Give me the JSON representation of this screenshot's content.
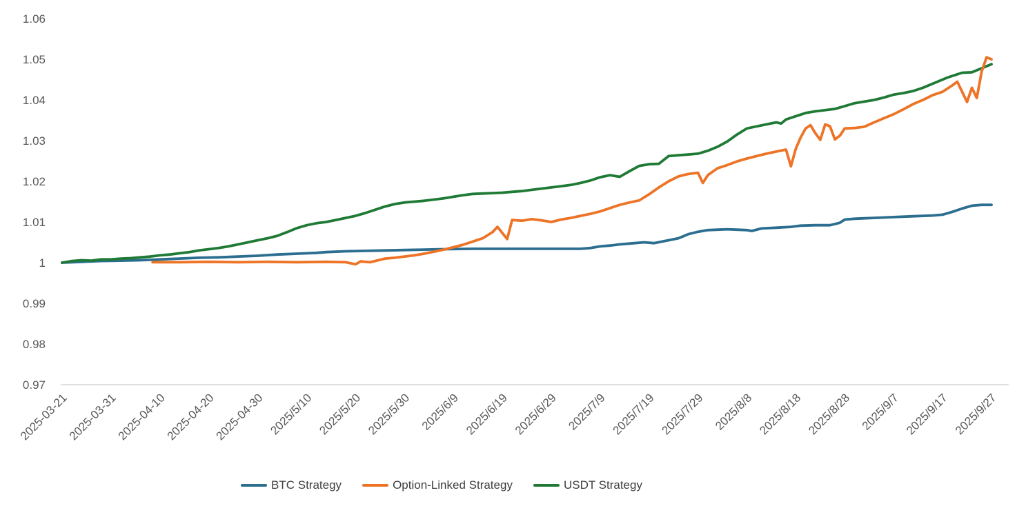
{
  "chart_data": {
    "type": "line",
    "title": "",
    "background_color": "#ffffff",
    "axis_line_color": "#d6d6d6",
    "axis_label_color": "#595959",
    "legend_text_color": "#404040",
    "x_axis": {
      "label": "",
      "unit": "days since 2025-03-21",
      "tick_labels": [
        "2025-03-21",
        "2025-03-31",
        "2025-04-10",
        "2025-04-20",
        "2025-04-30",
        "2025/5/10",
        "2025/5/20",
        "2025/5/30",
        "2025/6/9",
        "2025/6/19",
        "2025/6/29",
        "2025/7/9",
        "2025/7/19",
        "2025/7/29",
        "2025/8/8",
        "2025/8/18",
        "2025/8/28",
        "2025/9/7",
        "2025/9/17",
        "2025/9/27"
      ],
      "tick_day_offsets": [
        0,
        10,
        20,
        30,
        40,
        50,
        60,
        70,
        80,
        90,
        100,
        110,
        120,
        130,
        140,
        150,
        160,
        170,
        180,
        190
      ],
      "range_days": [
        0,
        190
      ],
      "tick_rotation_deg": -45
    },
    "y_axis": {
      "label": "",
      "tick_labels": [
        "1.06",
        "1.05",
        "1.04",
        "1.03",
        "1.02",
        "1.01",
        "1",
        "0.99",
        "0.98",
        "0.97"
      ],
      "min": 0.97,
      "max": 1.06,
      "grid": false
    },
    "legend": {
      "position": "bottom",
      "items": [
        "BTC Strategy",
        "Option-Linked Strategy",
        "USDT Strategy"
      ]
    },
    "series": [
      {
        "name": "BTC Strategy",
        "color": "#2b6e8f",
        "points": [
          [
            0,
            1.0
          ],
          [
            4,
            1.0002
          ],
          [
            8,
            1.0004
          ],
          [
            12,
            1.0005
          ],
          [
            16,
            1.0006
          ],
          [
            20,
            1.0008
          ],
          [
            24,
            1.001
          ],
          [
            28,
            1.0012
          ],
          [
            32,
            1.0013
          ],
          [
            36,
            1.0015
          ],
          [
            40,
            1.0017
          ],
          [
            44,
            1.002
          ],
          [
            48,
            1.0022
          ],
          [
            52,
            1.0024
          ],
          [
            54,
            1.0026
          ],
          [
            58,
            1.0028
          ],
          [
            62,
            1.0029
          ],
          [
            66,
            1.003
          ],
          [
            70,
            1.0031
          ],
          [
            74,
            1.0032
          ],
          [
            78,
            1.0033
          ],
          [
            84,
            1.0034
          ],
          [
            90,
            1.0034
          ],
          [
            96,
            1.0034
          ],
          [
            102,
            1.0034
          ],
          [
            106,
            1.0034
          ],
          [
            108,
            1.0036
          ],
          [
            110,
            1.004
          ],
          [
            112,
            1.0042
          ],
          [
            114,
            1.0045
          ],
          [
            117,
            1.0048
          ],
          [
            119,
            1.005
          ],
          [
            121,
            1.0048
          ],
          [
            124,
            1.0055
          ],
          [
            126,
            1.006
          ],
          [
            128,
            1.007
          ],
          [
            130,
            1.0076
          ],
          [
            132,
            1.008
          ],
          [
            134,
            1.0081
          ],
          [
            136,
            1.0082
          ],
          [
            138,
            1.0081
          ],
          [
            140,
            1.008
          ],
          [
            141,
            1.0078
          ],
          [
            143,
            1.0084
          ],
          [
            146,
            1.0086
          ],
          [
            149,
            1.0088
          ],
          [
            151,
            1.0091
          ],
          [
            154,
            1.0092
          ],
          [
            157,
            1.0092
          ],
          [
            159,
            1.0098
          ],
          [
            160,
            1.0106
          ],
          [
            162,
            1.0108
          ],
          [
            164,
            1.0109
          ],
          [
            166,
            1.011
          ],
          [
            170,
            1.0112
          ],
          [
            174,
            1.0114
          ],
          [
            178,
            1.0116
          ],
          [
            180,
            1.0118
          ],
          [
            182,
            1.0125
          ],
          [
            184,
            1.0133
          ],
          [
            186,
            1.014
          ],
          [
            188,
            1.0142
          ],
          [
            190,
            1.0142
          ]
        ]
      },
      {
        "name": "Option-Linked Strategy",
        "color": "#ed7426",
        "points": [
          [
            18.5,
            1.0001
          ],
          [
            24,
            1.0001
          ],
          [
            30,
            1.0002
          ],
          [
            36,
            1.0001
          ],
          [
            42,
            1.0002
          ],
          [
            48,
            1.0001
          ],
          [
            54,
            1.0002
          ],
          [
            58,
            1.0001
          ],
          [
            60,
            0.9996
          ],
          [
            61,
            1.0003
          ],
          [
            63,
            1.0001
          ],
          [
            66,
            1.001
          ],
          [
            68,
            1.0012
          ],
          [
            70,
            1.0015
          ],
          [
            72,
            1.0018
          ],
          [
            74,
            1.0022
          ],
          [
            76,
            1.0027
          ],
          [
            78,
            1.0032
          ],
          [
            80,
            1.0038
          ],
          [
            82,
            1.0044
          ],
          [
            84,
            1.0052
          ],
          [
            86,
            1.006
          ],
          [
            88,
            1.0075
          ],
          [
            89,
            1.0088
          ],
          [
            91,
            1.0058
          ],
          [
            92,
            1.0105
          ],
          [
            94,
            1.0103
          ],
          [
            96,
            1.0107
          ],
          [
            98,
            1.0104
          ],
          [
            100,
            1.01
          ],
          [
            102,
            1.0106
          ],
          [
            104,
            1.011
          ],
          [
            106,
            1.0115
          ],
          [
            108,
            1.012
          ],
          [
            110,
            1.0126
          ],
          [
            112,
            1.0134
          ],
          [
            114,
            1.0142
          ],
          [
            116,
            1.0148
          ],
          [
            118,
            1.0153
          ],
          [
            120,
            1.0168
          ],
          [
            122,
            1.0185
          ],
          [
            124,
            1.02
          ],
          [
            126,
            1.0212
          ],
          [
            128,
            1.0218
          ],
          [
            130,
            1.0221
          ],
          [
            131,
            1.0196
          ],
          [
            132,
            1.0215
          ],
          [
            134,
            1.0232
          ],
          [
            136,
            1.024
          ],
          [
            138,
            1.0249
          ],
          [
            140,
            1.0256
          ],
          [
            142,
            1.0262
          ],
          [
            144,
            1.0268
          ],
          [
            146,
            1.0273
          ],
          [
            148,
            1.0278
          ],
          [
            149,
            1.0237
          ],
          [
            150,
            1.028
          ],
          [
            151,
            1.0308
          ],
          [
            152,
            1.033
          ],
          [
            153,
            1.0338
          ],
          [
            154,
            1.0318
          ],
          [
            155,
            1.0302
          ],
          [
            156,
            1.034
          ],
          [
            157,
            1.0335
          ],
          [
            158,
            1.0303
          ],
          [
            159,
            1.0312
          ],
          [
            160,
            1.033
          ],
          [
            162,
            1.0331
          ],
          [
            164,
            1.0334
          ],
          [
            166,
            1.0345
          ],
          [
            168,
            1.0355
          ],
          [
            170,
            1.0365
          ],
          [
            172,
            1.0377
          ],
          [
            174,
            1.039
          ],
          [
            176,
            1.04
          ],
          [
            178,
            1.0412
          ],
          [
            180,
            1.042
          ],
          [
            182,
            1.0436
          ],
          [
            183,
            1.0445
          ],
          [
            184,
            1.042
          ],
          [
            185,
            1.0395
          ],
          [
            186,
            1.043
          ],
          [
            187,
            1.0405
          ],
          [
            188,
            1.047
          ],
          [
            189,
            1.0505
          ],
          [
            190,
            1.05
          ]
        ]
      },
      {
        "name": "USDT Strategy",
        "color": "#1f7a36",
        "points": [
          [
            0,
            1.0
          ],
          [
            2,
            1.0004
          ],
          [
            4,
            1.0006
          ],
          [
            6,
            1.0005
          ],
          [
            8,
            1.0008
          ],
          [
            10,
            1.0008
          ],
          [
            12,
            1.001
          ],
          [
            14,
            1.0011
          ],
          [
            16,
            1.0013
          ],
          [
            18,
            1.0015
          ],
          [
            20,
            1.0018
          ],
          [
            22,
            1.002
          ],
          [
            24,
            1.0023
          ],
          [
            26,
            1.0026
          ],
          [
            28,
            1.003
          ],
          [
            30,
            1.0033
          ],
          [
            32,
            1.0036
          ],
          [
            34,
            1.004
          ],
          [
            36,
            1.0045
          ],
          [
            38,
            1.005
          ],
          [
            40,
            1.0055
          ],
          [
            42,
            1.006
          ],
          [
            44,
            1.0066
          ],
          [
            46,
            1.0075
          ],
          [
            48,
            1.0085
          ],
          [
            50,
            1.0092
          ],
          [
            52,
            1.0097
          ],
          [
            54,
            1.01
          ],
          [
            56,
            1.0105
          ],
          [
            58,
            1.011
          ],
          [
            60,
            1.0115
          ],
          [
            62,
            1.0122
          ],
          [
            64,
            1.013
          ],
          [
            66,
            1.0138
          ],
          [
            68,
            1.0144
          ],
          [
            70,
            1.0148
          ],
          [
            72,
            1.015
          ],
          [
            74,
            1.0152
          ],
          [
            76,
            1.0155
          ],
          [
            78,
            1.0158
          ],
          [
            80,
            1.0162
          ],
          [
            82,
            1.0166
          ],
          [
            84,
            1.0169
          ],
          [
            86,
            1.017
          ],
          [
            88,
            1.0171
          ],
          [
            90,
            1.0172
          ],
          [
            92,
            1.0174
          ],
          [
            94,
            1.0176
          ],
          [
            96,
            1.0179
          ],
          [
            98,
            1.0182
          ],
          [
            100,
            1.0185
          ],
          [
            102,
            1.0188
          ],
          [
            104,
            1.0191
          ],
          [
            106,
            1.0196
          ],
          [
            108,
            1.0202
          ],
          [
            110,
            1.021
          ],
          [
            112,
            1.0215
          ],
          [
            114,
            1.0211
          ],
          [
            116,
            1.0225
          ],
          [
            118,
            1.0238
          ],
          [
            120,
            1.0242
          ],
          [
            122,
            1.0243
          ],
          [
            124,
            1.0262
          ],
          [
            126,
            1.0264
          ],
          [
            128,
            1.0266
          ],
          [
            130,
            1.0268
          ],
          [
            132,
            1.0275
          ],
          [
            134,
            1.0285
          ],
          [
            136,
            1.0298
          ],
          [
            138,
            1.0315
          ],
          [
            140,
            1.033
          ],
          [
            142,
            1.0335
          ],
          [
            144,
            1.034
          ],
          [
            146,
            1.0345
          ],
          [
            147,
            1.0342
          ],
          [
            148,
            1.0352
          ],
          [
            150,
            1.036
          ],
          [
            152,
            1.0368
          ],
          [
            154,
            1.0372
          ],
          [
            156,
            1.0375
          ],
          [
            158,
            1.0378
          ],
          [
            160,
            1.0385
          ],
          [
            162,
            1.0392
          ],
          [
            164,
            1.0396
          ],
          [
            166,
            1.04
          ],
          [
            168,
            1.0406
          ],
          [
            170,
            1.0413
          ],
          [
            172,
            1.0417
          ],
          [
            174,
            1.0422
          ],
          [
            176,
            1.043
          ],
          [
            178,
            1.044
          ],
          [
            181,
            1.0455
          ],
          [
            183,
            1.0463
          ],
          [
            184,
            1.0467
          ],
          [
            186,
            1.0468
          ],
          [
            188,
            1.0478
          ],
          [
            190,
            1.0488
          ]
        ]
      }
    ]
  }
}
